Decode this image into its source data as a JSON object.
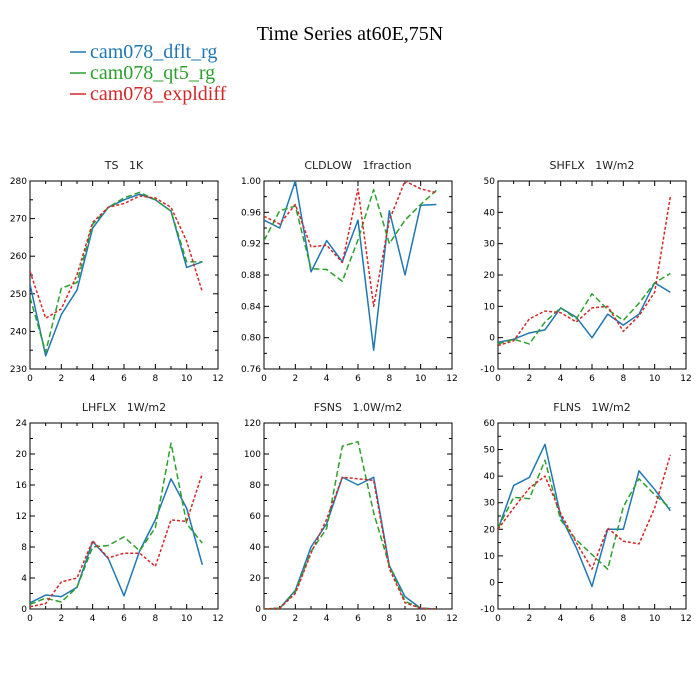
{
  "figure_title": "Time Series at60E,75N",
  "legend": [
    {
      "label": "cam078_dflt_rg",
      "color": "#1f77b4",
      "dash": "solid"
    },
    {
      "label": "cam078_qt5_rg",
      "color": "#2ca02c",
      "dash": "long"
    },
    {
      "label": "cam078_expldiff",
      "color": "#d62728",
      "dash": "short"
    }
  ],
  "chart_data": [
    {
      "type": "line",
      "title": "TS   1K",
      "xlim": [
        0,
        12
      ],
      "ylim": [
        230,
        280
      ],
      "xticks": [
        0,
        2,
        4,
        6,
        8,
        10,
        12
      ],
      "yticks": [
        230,
        240,
        250,
        260,
        270,
        280
      ],
      "x": [
        0,
        1,
        2,
        3,
        4,
        5,
        6,
        7,
        8,
        9,
        10,
        11
      ],
      "series": [
        {
          "name": "cam078_dflt_rg",
          "values": [
            252.5,
            233.5,
            244.5,
            251.0,
            267.5,
            273.0,
            275.0,
            276.5,
            275.0,
            272.0,
            257.0,
            258.5
          ]
        },
        {
          "name": "cam078_qt5_rg",
          "values": [
            249.0,
            234.5,
            251.5,
            253.0,
            268.5,
            273.0,
            275.5,
            277.0,
            275.0,
            272.0,
            258.5,
            258.5
          ]
        },
        {
          "name": "cam078_expldiff",
          "values": [
            256.0,
            243.5,
            246.0,
            255.0,
            269.0,
            273.0,
            274.0,
            276.0,
            275.5,
            273.0,
            264.0,
            250.5
          ]
        }
      ]
    },
    {
      "type": "line",
      "title": "CLDLOW   1fraction",
      "xlim": [
        0,
        12
      ],
      "ylim": [
        0.76,
        1.0
      ],
      "xticks": [
        0,
        2,
        4,
        6,
        8,
        10,
        12
      ],
      "yticks": [
        0.76,
        0.8,
        0.84,
        0.88,
        0.92,
        0.96,
        1.0
      ],
      "ytick_labels": [
        "0.76",
        "0.80",
        "0.84",
        "0.88",
        "0.92",
        "0.96",
        "1.00"
      ],
      "x": [
        0,
        1,
        2,
        3,
        4,
        5,
        6,
        7,
        8,
        9,
        10,
        11
      ],
      "series": [
        {
          "name": "cam078_dflt_rg",
          "values": [
            0.95,
            0.94,
            1.0,
            0.884,
            0.924,
            0.897,
            0.95,
            0.784,
            0.962,
            0.88,
            0.969,
            0.97
          ]
        },
        {
          "name": "cam078_qt5_rg",
          "values": [
            0.924,
            0.962,
            0.968,
            0.888,
            0.887,
            0.872,
            0.925,
            0.989,
            0.92,
            0.95,
            0.97,
            0.988
          ]
        },
        {
          "name": "cam078_expldiff",
          "values": [
            0.955,
            0.945,
            0.97,
            0.916,
            0.918,
            0.896,
            0.99,
            0.84,
            0.95,
            1.0,
            0.99,
            0.985
          ]
        }
      ]
    },
    {
      "type": "line",
      "title": "SHFLX   1W/m2",
      "xlim": [
        0,
        12
      ],
      "ylim": [
        -10,
        50
      ],
      "xticks": [
        0,
        2,
        4,
        6,
        8,
        10,
        12
      ],
      "yticks": [
        -10,
        0,
        10,
        20,
        30,
        40,
        50
      ],
      "x": [
        0,
        1,
        2,
        3,
        4,
        5,
        6,
        7,
        8,
        9,
        10,
        11
      ],
      "series": [
        {
          "name": "cam078_dflt_rg",
          "values": [
            -1.5,
            -0.5,
            1.5,
            2.5,
            9.5,
            6.5,
            0.0,
            7.5,
            4.0,
            7.5,
            17.5,
            14.5
          ]
        },
        {
          "name": "cam078_qt5_rg",
          "values": [
            -2.0,
            -0.5,
            -2.0,
            5.0,
            9.5,
            6.0,
            14.0,
            9.0,
            5.5,
            11.0,
            17.5,
            20.5
          ]
        },
        {
          "name": "cam078_expldiff",
          "values": [
            -2.5,
            -1.0,
            6.0,
            8.5,
            8.0,
            5.0,
            9.5,
            10.0,
            2.0,
            7.0,
            14.5,
            45.0
          ]
        }
      ]
    },
    {
      "type": "line",
      "title": "LHFLX   1W/m2",
      "xlim": [
        0,
        12
      ],
      "ylim": [
        0,
        24
      ],
      "xticks": [
        0,
        2,
        4,
        6,
        8,
        10,
        12
      ],
      "yticks": [
        0,
        4,
        8,
        12,
        16,
        20,
        24
      ],
      "x": [
        0,
        1,
        2,
        3,
        4,
        5,
        6,
        7,
        8,
        9,
        10,
        11
      ],
      "series": [
        {
          "name": "cam078_dflt_rg",
          "values": [
            0.8,
            1.8,
            1.6,
            2.8,
            8.7,
            6.5,
            1.7,
            7.5,
            11.5,
            16.8,
            13.0,
            5.7
          ]
        },
        {
          "name": "cam078_qt5_rg",
          "values": [
            0.6,
            1.4,
            0.9,
            2.8,
            8.0,
            8.2,
            9.3,
            7.5,
            10.5,
            21.4,
            11.0,
            8.5
          ]
        },
        {
          "name": "cam078_expldiff",
          "values": [
            0.3,
            0.7,
            3.5,
            4.0,
            8.8,
            6.6,
            7.2,
            7.2,
            5.5,
            11.5,
            11.3,
            17.5
          ]
        }
      ]
    },
    {
      "type": "line",
      "title": "FSNS   1.0W/m2",
      "xlim": [
        0,
        12
      ],
      "ylim": [
        0,
        120
      ],
      "xticks": [
        0,
        2,
        4,
        6,
        8,
        10,
        12
      ],
      "yticks": [
        0,
        20,
        40,
        60,
        80,
        100,
        120
      ],
      "x": [
        0,
        1,
        2,
        3,
        4,
        5,
        6,
        7,
        8,
        9,
        10,
        11
      ],
      "series": [
        {
          "name": "cam078_dflt_rg",
          "values": [
            0.0,
            0.5,
            12.0,
            40.0,
            55.0,
            85.0,
            80.0,
            85.0,
            28.0,
            8.0,
            0.5,
            0.0
          ]
        },
        {
          "name": "cam078_qt5_rg",
          "values": [
            0.0,
            0.5,
            11.0,
            37.0,
            52.0,
            105.0,
            108.0,
            62.0,
            28.0,
            5.0,
            0.5,
            0.0
          ]
        },
        {
          "name": "cam078_expldiff",
          "values": [
            0.0,
            0.5,
            10.0,
            36.0,
            58.0,
            85.0,
            84.0,
            83.0,
            26.0,
            4.0,
            0.5,
            0.0
          ]
        }
      ]
    },
    {
      "type": "line",
      "title": "FLNS   1W/m2",
      "xlim": [
        0,
        12
      ],
      "ylim": [
        -10,
        60
      ],
      "xticks": [
        0,
        2,
        4,
        6,
        8,
        10,
        12
      ],
      "yticks": [
        -10,
        0,
        10,
        20,
        30,
        40,
        50,
        60
      ],
      "x": [
        0,
        1,
        2,
        3,
        4,
        5,
        6,
        7,
        8,
        9,
        10,
        11
      ],
      "series": [
        {
          "name": "cam078_dflt_rg",
          "values": [
            20.0,
            36.5,
            39.5,
            52.0,
            25.0,
            13.0,
            -1.5,
            20.0,
            20.0,
            42.0,
            35.0,
            27.0
          ]
        },
        {
          "name": "cam078_qt5_rg",
          "values": [
            20.5,
            32.0,
            31.5,
            46.0,
            23.5,
            16.0,
            10.5,
            5.0,
            28.5,
            39.0,
            33.0,
            28.0
          ]
        },
        {
          "name": "cam078_expldiff",
          "values": [
            20.0,
            28.0,
            35.5,
            40.0,
            26.0,
            15.0,
            5.0,
            20.5,
            15.5,
            14.5,
            28.0,
            48.0
          ]
        }
      ]
    }
  ]
}
